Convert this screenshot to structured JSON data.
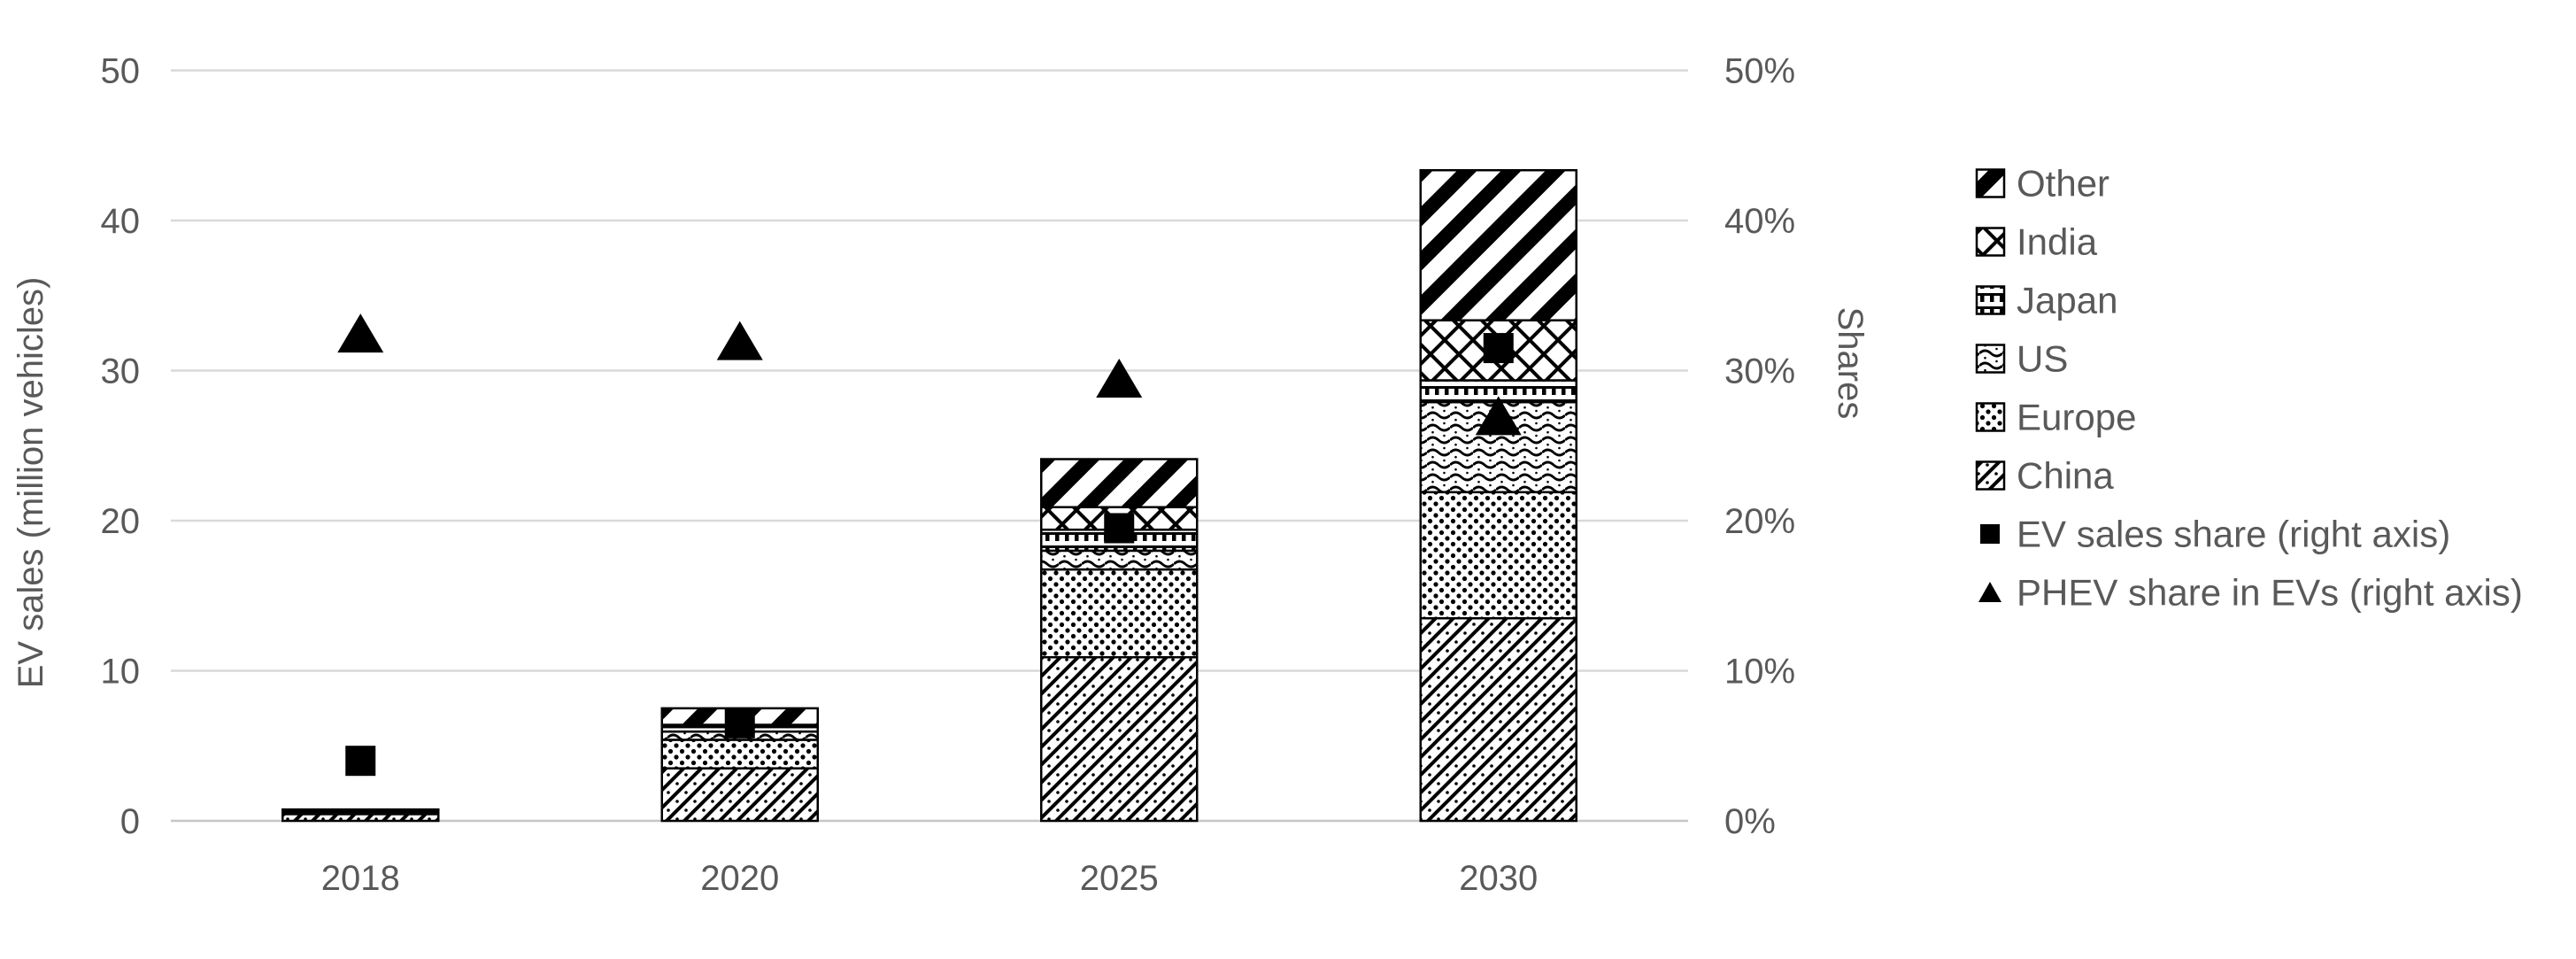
{
  "chart_data": {
    "type": "bar",
    "subtype": "stacked-bars-with-scatter-markers",
    "title": "",
    "categories": [
      "2018",
      "2020",
      "2025",
      "2030"
    ],
    "unit_left": "million vehicles",
    "unit_right": "percent",
    "series": [
      {
        "name": "China",
        "pattern": "china",
        "values": [
          0.45,
          3.5,
          10.9,
          13.5
        ]
      },
      {
        "name": "Europe",
        "pattern": "europe",
        "values": [
          0.15,
          1.9,
          5.85,
          8.4
        ]
      },
      {
        "name": "US",
        "pattern": "us",
        "values": [
          0.08,
          0.55,
          1.25,
          6.0
        ]
      },
      {
        "name": "Japan",
        "pattern": "japan",
        "values": [
          0.04,
          0.3,
          1.4,
          1.45
        ]
      },
      {
        "name": "India",
        "pattern": "india",
        "values": [
          0.01,
          0.15,
          1.5,
          4.0
        ]
      },
      {
        "name": "Other",
        "pattern": "other",
        "values": [
          0.03,
          1.1,
          3.2,
          10.0
        ]
      }
    ],
    "bar_totals": [
      0.76,
      7.5,
      24.1,
      43.35
    ],
    "markers": [
      {
        "name": "EV sales share (right axis)",
        "shape": "square",
        "values_pct": [
          4.0,
          6.5,
          19.5,
          31.5
        ]
      },
      {
        "name": "PHEV share in EVs (right axis)",
        "shape": "triangle",
        "values_pct": [
          32.5,
          32.0,
          29.5,
          27.0
        ]
      }
    ],
    "left_axis": {
      "label": "EV sales (million vehicles)",
      "ticks": [
        "0",
        "10",
        "20",
        "30",
        "40",
        "50"
      ],
      "range": [
        0,
        50
      ]
    },
    "right_axis": {
      "label": "Shares",
      "ticks": [
        "0%",
        "10%",
        "20%",
        "30%",
        "40%",
        "50%"
      ],
      "range": [
        0,
        50
      ]
    },
    "legend": [
      {
        "label": "Other",
        "swatch": "pattern",
        "pattern": "other"
      },
      {
        "label": "India",
        "swatch": "pattern",
        "pattern": "india"
      },
      {
        "label": "Japan",
        "swatch": "pattern",
        "pattern": "japan"
      },
      {
        "label": "US",
        "swatch": "pattern",
        "pattern": "us"
      },
      {
        "label": "Europe",
        "swatch": "pattern",
        "pattern": "europe"
      },
      {
        "label": "China",
        "swatch": "pattern",
        "pattern": "china"
      },
      {
        "label": "EV sales share (right axis)",
        "swatch": "marker",
        "shape": "square"
      },
      {
        "label": "PHEV share in EVs (right axis)",
        "swatch": "marker",
        "shape": "triangle"
      }
    ],
    "layout": {
      "grid": true,
      "legend_position": "right"
    },
    "colors": {
      "ink": "#000000",
      "text": "#595959",
      "gridline": "#d9d9d9",
      "baseline": "#c6c6c6",
      "background": "#ffffff"
    }
  }
}
